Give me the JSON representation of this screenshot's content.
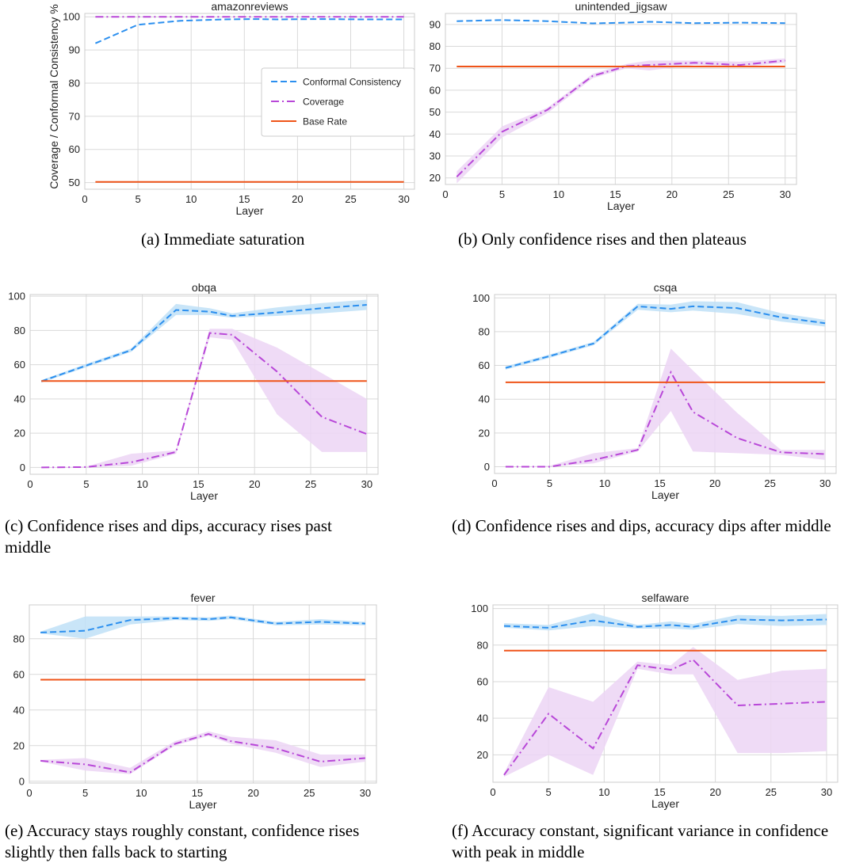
{
  "chart_data": [
    {
      "type": "line",
      "title": "amazonreviews",
      "xlabel": "Layer",
      "ylabel": "Coverage / Conformal Consistency %",
      "xlim": [
        0,
        31
      ],
      "ylim": [
        48,
        101
      ],
      "xticks": [
        0,
        5,
        10,
        15,
        20,
        25,
        30
      ],
      "yticks": [
        50,
        60,
        70,
        80,
        90,
        100
      ],
      "grid": true,
      "legend_position": "center-right",
      "legend": [
        "Conformal Consistency",
        "Coverage",
        "Base Rate"
      ],
      "caption": "(a) Immediate saturation",
      "series": [
        {
          "name": "Conformal Consistency",
          "x": [
            1,
            5,
            9,
            13,
            16,
            18,
            22,
            26,
            30
          ],
          "values": [
            92,
            97.6,
            98.8,
            99.2,
            99.3,
            99.2,
            99.3,
            99.2,
            99.2
          ]
        },
        {
          "name": "Coverage",
          "x": [
            1,
            5,
            9,
            13,
            16,
            18,
            22,
            26,
            30
          ],
          "values": [
            100,
            100,
            100,
            100,
            100,
            100,
            100,
            100,
            100
          ]
        },
        {
          "name": "Base Rate",
          "x": [
            1,
            30
          ],
          "values": [
            50.2,
            50.2
          ]
        }
      ]
    },
    {
      "type": "line",
      "title": "unintended_jigsaw",
      "xlabel": "Layer",
      "ylabel": "",
      "xlim": [
        0,
        31
      ],
      "ylim": [
        17,
        95
      ],
      "xticks": [
        0,
        5,
        10,
        15,
        20,
        25,
        30
      ],
      "yticks": [
        20,
        30,
        40,
        50,
        60,
        70,
        80,
        90
      ],
      "grid": true,
      "caption": "(b) Only confidence rises and then plateaus",
      "series": [
        {
          "name": "Conformal Consistency",
          "x": [
            1,
            5,
            9,
            13,
            16,
            18,
            22,
            26,
            30
          ],
          "values": [
            91.5,
            92,
            91.5,
            90.5,
            90.8,
            91.2,
            90.6,
            90.8,
            90.6
          ]
        },
        {
          "name": "Coverage",
          "x": [
            1,
            5,
            9,
            13,
            16,
            18,
            22,
            26,
            30
          ],
          "values": [
            20.5,
            41,
            51,
            66.5,
            71,
            71.5,
            72.5,
            71.5,
            73.5
          ],
          "band_low": [
            17.5,
            38.5,
            49.5,
            65.5,
            70,
            69,
            71.5,
            70.5,
            72.5
          ],
          "band_high": [
            23,
            43.5,
            52,
            67.5,
            72,
            73.5,
            73.5,
            73,
            74.5
          ]
        },
        {
          "name": "Base Rate",
          "x": [
            1,
            30
          ],
          "values": [
            70.8,
            70.8
          ]
        }
      ]
    },
    {
      "type": "line",
      "title": "obqa",
      "xlabel": "Layer",
      "ylabel": "",
      "xlim": [
        0,
        31
      ],
      "ylim": [
        -4,
        101
      ],
      "xticks": [
        0,
        5,
        10,
        15,
        20,
        25,
        30
      ],
      "yticks": [
        0,
        20,
        40,
        60,
        80,
        100
      ],
      "grid": true,
      "caption": "(c) Confidence rises and dips, accuracy rises past middle",
      "series": [
        {
          "name": "Conformal Consistency",
          "x": [
            1,
            5,
            9,
            13,
            16,
            18,
            22,
            26,
            30
          ],
          "values": [
            50.3,
            59.5,
            68.5,
            92,
            91,
            88.5,
            90.5,
            93,
            95
          ],
          "band_low": [
            49.5,
            58.5,
            67.5,
            89,
            89,
            87.5,
            88.5,
            90,
            92
          ],
          "band_high": [
            51,
            60.5,
            69.5,
            95.5,
            93,
            90,
            93.5,
            96,
            98
          ]
        },
        {
          "name": "Coverage",
          "x": [
            1,
            5,
            9,
            13,
            16,
            18,
            22,
            26,
            30
          ],
          "values": [
            0,
            0.2,
            3,
            9,
            78.5,
            77.5,
            56,
            29.5,
            19.5
          ],
          "band_low": [
            0,
            0,
            1,
            8,
            76,
            74.5,
            31,
            9,
            9
          ],
          "band_high": [
            0,
            0.5,
            8,
            10,
            81,
            81,
            70,
            55,
            40
          ]
        },
        {
          "name": "Base Rate",
          "x": [
            1,
            30
          ],
          "values": [
            50.5,
            50.5
          ]
        }
      ]
    },
    {
      "type": "line",
      "title": "csqa",
      "xlabel": "Layer",
      "ylabel": "",
      "xlim": [
        0,
        31
      ],
      "ylim": [
        -4,
        102
      ],
      "xticks": [
        0,
        5,
        10,
        15,
        20,
        25,
        30
      ],
      "yticks": [
        0,
        20,
        40,
        60,
        80,
        100
      ],
      "grid": true,
      "caption": "(d) Confidence rises and dips, accuracy dips after middle",
      "series": [
        {
          "name": "Conformal Consistency",
          "x": [
            1,
            5,
            9,
            13,
            16,
            18,
            22,
            26,
            30
          ],
          "values": [
            58.5,
            65.5,
            73,
            95,
            93.5,
            95,
            94,
            88.5,
            85
          ],
          "band_low": [
            57.5,
            64.5,
            72,
            93,
            91.5,
            92.5,
            90.5,
            86,
            83
          ],
          "band_high": [
            59.5,
            66.5,
            74,
            96.5,
            96,
            98,
            97.5,
            91,
            87
          ]
        },
        {
          "name": "Coverage",
          "x": [
            1,
            5,
            9,
            13,
            16,
            18,
            22,
            26,
            30
          ],
          "values": [
            0,
            0,
            4,
            10,
            56,
            32.5,
            17,
            8.5,
            7.5
          ],
          "band_low": [
            0,
            0,
            2,
            9,
            33,
            9,
            8,
            7,
            4
          ],
          "band_high": [
            0,
            0.5,
            8,
            11,
            70,
            57,
            32,
            10,
            10
          ]
        },
        {
          "name": "Base Rate",
          "x": [
            1,
            30
          ],
          "values": [
            50,
            50
          ]
        }
      ]
    },
    {
      "type": "line",
      "title": "fever",
      "xlabel": "Layer",
      "ylabel": "",
      "xlim": [
        0,
        31
      ],
      "ylim": [
        -1,
        99
      ],
      "xticks": [
        0,
        5,
        10,
        15,
        20,
        25,
        30
      ],
      "yticks": [
        0,
        20,
        40,
        60,
        80
      ],
      "grid": true,
      "caption": "(e) Accuracy stays roughly constant, confidence rises slightly then falls back to starting",
      "series": [
        {
          "name": "Conformal Consistency",
          "x": [
            1,
            5,
            9,
            13,
            16,
            18,
            22,
            26,
            30
          ],
          "values": [
            83.5,
            84.5,
            90.5,
            91.5,
            91,
            92,
            88.5,
            89.5,
            88.5
          ],
          "band_low": [
            83,
            80,
            88,
            90.5,
            90,
            91,
            87.5,
            88,
            87.5
          ],
          "band_high": [
            84,
            92.5,
            92.5,
            92.5,
            92,
            93,
            89.5,
            91,
            89.5
          ]
        },
        {
          "name": "Coverage",
          "x": [
            1,
            5,
            9,
            13,
            16,
            18,
            22,
            26,
            30
          ],
          "values": [
            11.5,
            9.5,
            5,
            21,
            26.5,
            22.5,
            18.5,
            11,
            13
          ],
          "band_low": [
            11,
            6,
            4,
            20,
            25.5,
            21,
            16,
            8,
            11
          ],
          "band_high": [
            12,
            13,
            7.5,
            22.5,
            28,
            25,
            23,
            15,
            15
          ]
        },
        {
          "name": "Base Rate",
          "x": [
            1,
            30
          ],
          "values": [
            57,
            57
          ]
        }
      ]
    },
    {
      "type": "line",
      "title": "selfaware",
      "xlabel": "Layer",
      "ylabel": "",
      "xlim": [
        0,
        31
      ],
      "ylim": [
        5,
        102
      ],
      "xticks": [
        0,
        5,
        10,
        15,
        20,
        25,
        30
      ],
      "yticks": [
        20,
        40,
        60,
        80,
        100
      ],
      "grid": true,
      "caption": "(f) Accuracy constant, significant variance in confidence with peak in middle",
      "series": [
        {
          "name": "Conformal Consistency",
          "x": [
            1,
            5,
            9,
            13,
            16,
            18,
            22,
            26,
            30
          ],
          "values": [
            90.5,
            89.5,
            93.5,
            90,
            91,
            90,
            94,
            93.5,
            94
          ],
          "band_low": [
            89.5,
            88,
            90.5,
            89,
            89,
            88.5,
            91.5,
            90.5,
            91
          ],
          "band_high": [
            92,
            91,
            97.5,
            91,
            93,
            91.5,
            96.5,
            96,
            97
          ]
        },
        {
          "name": "Coverage",
          "x": [
            1,
            5,
            9,
            13,
            16,
            18,
            22,
            26,
            30
          ],
          "values": [
            9,
            42.5,
            23.5,
            69,
            66.5,
            72,
            47,
            48,
            49
          ],
          "band_low": [
            8,
            20,
            9,
            67,
            64,
            64,
            21,
            21,
            22
          ],
          "band_high": [
            10,
            57,
            49,
            71,
            69,
            79,
            61,
            66,
            67
          ]
        },
        {
          "name": "Base Rate",
          "x": [
            1,
            30
          ],
          "values": [
            77,
            77
          ]
        }
      ]
    }
  ],
  "colors": {
    "consistency": "#2b8fef",
    "consistency_band": "#bfe0f7",
    "coverage": "#b847d8",
    "coverage_band": "#ecd5f4",
    "base_rate": "#ef5419",
    "grid": "#d9d9d9",
    "axis_text": "#222222"
  }
}
